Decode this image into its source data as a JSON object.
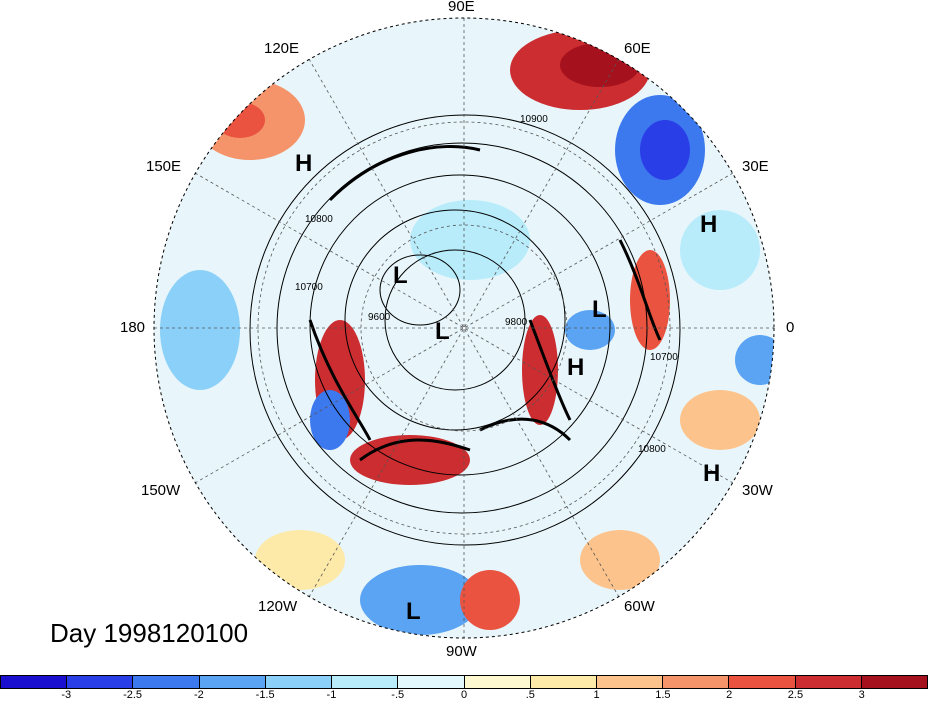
{
  "title": "Day 1998120100",
  "longitude_labels": {
    "lon_90e": "90E",
    "lon_60e": "60E",
    "lon_120e": "120E",
    "lon_150e": "150E",
    "lon_30e": "30E",
    "lon_180": "180",
    "lon_0": "0",
    "lon_150w": "150W",
    "lon_30w": "30W",
    "lon_120w": "120W",
    "lon_60w": "60W",
    "lon_90w": "90W"
  },
  "pressure_centers": {
    "h1": "H",
    "h2": "H",
    "h3": "H",
    "h4": "H",
    "l1": "L",
    "l2": "L",
    "l3": "L",
    "l4": "L"
  },
  "contour_labels": {
    "c1": "10900",
    "c2": "10800",
    "c3": "10700",
    "c4": "9800",
    "c5": "9600",
    "c6": "10800",
    "c7": "10700"
  },
  "colorbar": {
    "colors": [
      "#1a0fcf",
      "#2a3ee8",
      "#3c78ee",
      "#5ba3f3",
      "#8ad0f8",
      "#b8ecfb",
      "#e2f8fc",
      "#fdf8cf",
      "#fde9a8",
      "#fcc48c",
      "#f5946a",
      "#e9533f",
      "#cc2d30",
      "#a5121e"
    ],
    "ticks": [
      "-3",
      "-2.5",
      "-2",
      "-1.5",
      "-1",
      "-.5",
      "0",
      ".5",
      "1",
      "1.5",
      "2",
      "2.5",
      "3"
    ]
  }
}
